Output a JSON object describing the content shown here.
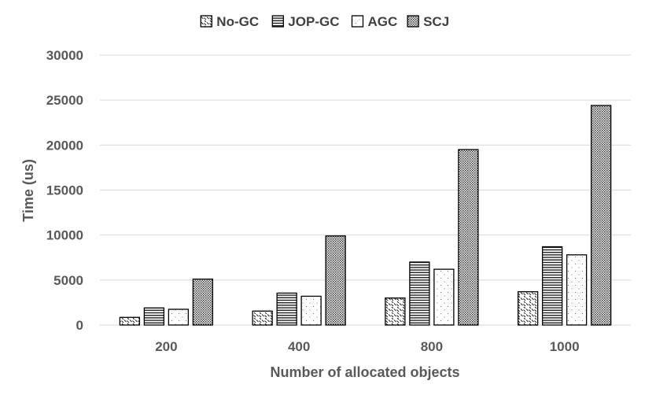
{
  "chart_data": {
    "type": "bar",
    "title": "",
    "xlabel": "Number of allocated objects",
    "ylabel": "Time (us)",
    "categories": [
      "200",
      "400",
      "800",
      "1000"
    ],
    "series": [
      {
        "name": "No-GC",
        "values": [
          850,
          1550,
          3000,
          3700
        ]
      },
      {
        "name": "JOP-GC",
        "values": [
          1900,
          3550,
          7000,
          8700
        ]
      },
      {
        "name": "AGC",
        "values": [
          1750,
          3200,
          6200,
          7800
        ]
      },
      {
        "name": "SCJ",
        "values": [
          5100,
          9900,
          19500,
          24400
        ]
      }
    ],
    "ylim": [
      0,
      30000
    ],
    "yticks": [
      "0",
      "5000",
      "10000",
      "15000",
      "20000",
      "25000",
      "30000"
    ],
    "grid": true,
    "legend_position": "top-center",
    "series_patterns": [
      "diagonal-dashes",
      "horizontal-lines",
      "sparse-dots",
      "dense-dots"
    ]
  }
}
